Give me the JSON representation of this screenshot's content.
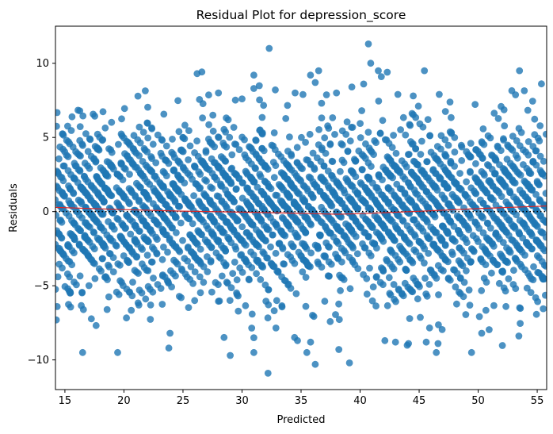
{
  "chart_data": {
    "type": "scatter",
    "title": "Residual Plot for depression_score",
    "xlabel": "Predicted",
    "ylabel": "Residuals",
    "xlim": [
      14.2,
      55.8
    ],
    "ylim": [
      -12.0,
      12.5
    ],
    "xticks": [
      15,
      20,
      25,
      30,
      35,
      40,
      45,
      50,
      55
    ],
    "yticks": [
      -10,
      -5,
      0,
      5,
      10
    ],
    "grid": false,
    "legend": "none",
    "point_color": "#1f77b4",
    "band_pattern": {
      "description": "dense diagonal bands of residuals with slope -1 (integer-valued targets)",
      "predicted_range": [
        14.2,
        55.8
      ],
      "residual_std_band": 3.0
    },
    "outliers": [
      {
        "x": 26.2,
        "y": 9.3
      },
      {
        "x": 28.0,
        "y": 8.0
      },
      {
        "x": 30.0,
        "y": 7.6
      },
      {
        "x": 31.0,
        "y": 9.2
      },
      {
        "x": 31.0,
        "y": 8.3
      },
      {
        "x": 32.3,
        "y": 11.0
      },
      {
        "x": 34.5,
        "y": 8.0
      },
      {
        "x": 35.8,
        "y": 9.2
      },
      {
        "x": 36.2,
        "y": 8.7
      },
      {
        "x": 38.0,
        "y": 8.0
      },
      {
        "x": 39.3,
        "y": 8.4
      },
      {
        "x": 40.3,
        "y": 8.6
      },
      {
        "x": 40.7,
        "y": 11.3
      },
      {
        "x": 40.9,
        "y": 10.0
      },
      {
        "x": 41.8,
        "y": 9.1
      },
      {
        "x": 42.3,
        "y": 9.4
      },
      {
        "x": 43.2,
        "y": 7.9
      },
      {
        "x": 44.5,
        "y": 7.8
      },
      {
        "x": 46.7,
        "y": 7.9
      },
      {
        "x": 23.8,
        "y": -9.2
      },
      {
        "x": 23.9,
        "y": -8.2
      },
      {
        "x": 29.0,
        "y": -9.7
      },
      {
        "x": 31.0,
        "y": -8.5
      },
      {
        "x": 31.0,
        "y": -9.5
      },
      {
        "x": 32.2,
        "y": -10.9
      },
      {
        "x": 34.7,
        "y": -8.7
      },
      {
        "x": 36.2,
        "y": -10.3
      },
      {
        "x": 38.2,
        "y": -9.3
      },
      {
        "x": 39.1,
        "y": -10.2
      },
      {
        "x": 42.1,
        "y": -8.7
      },
      {
        "x": 43.0,
        "y": -8.8
      },
      {
        "x": 44.1,
        "y": -8.9
      },
      {
        "x": 45.6,
        "y": -8.8
      },
      {
        "x": 46.6,
        "y": -8.9
      },
      {
        "x": 50.3,
        "y": -8.2
      }
    ],
    "trend_line": {
      "color": "#d62728",
      "x": [
        14.2,
        20,
        25,
        30,
        35,
        38,
        40,
        45,
        50,
        55.8
      ],
      "y": [
        0.28,
        0.13,
        0.03,
        -0.04,
        -0.12,
        -0.18,
        -0.14,
        0.02,
        0.2,
        0.38
      ]
    },
    "reference_line": {
      "y": 0,
      "style": "dotted",
      "color": "#000000"
    }
  }
}
